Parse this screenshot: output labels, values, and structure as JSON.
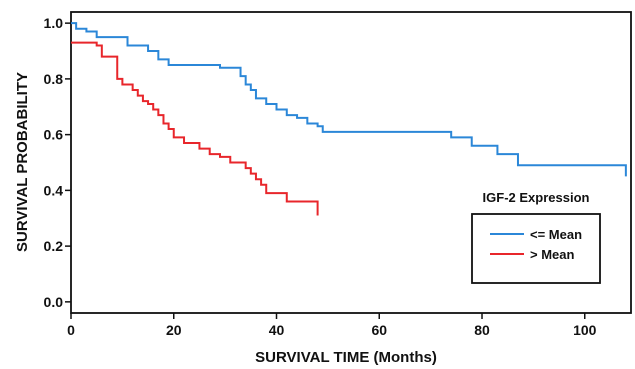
{
  "chart_data": {
    "type": "line",
    "subtype": "kaplan-meier step",
    "xlabel": "SURVIVAL TIME (Months)",
    "ylabel": "SURVIVAL PROBABILITY",
    "xlim": [
      0,
      109
    ],
    "ylim": [
      -0.04,
      1.04
    ],
    "xticks": [
      0,
      20,
      40,
      60,
      80,
      100
    ],
    "yticks": [
      0.0,
      0.2,
      0.4,
      0.6,
      0.8,
      1.0
    ],
    "ytick_labels": [
      "0.0",
      "0.2",
      "0.4",
      "0.6",
      "0.8",
      "1.0"
    ],
    "grid": false,
    "legend": {
      "title": "IGF-2 Expression",
      "placement": "right",
      "entries": [
        "<= Mean",
        "> Mean"
      ]
    },
    "series": [
      {
        "name": "<= Mean",
        "color": "#2b87d8",
        "x": [
          0,
          1,
          3,
          5,
          11,
          15,
          17,
          19,
          29,
          33,
          34,
          35,
          36,
          38,
          40,
          42,
          44,
          46,
          48,
          49,
          74,
          78,
          83,
          87,
          108
        ],
        "y": [
          1.0,
          0.98,
          0.97,
          0.95,
          0.92,
          0.9,
          0.87,
          0.85,
          0.84,
          0.81,
          0.78,
          0.76,
          0.73,
          0.71,
          0.69,
          0.67,
          0.66,
          0.64,
          0.63,
          0.61,
          0.59,
          0.56,
          0.53,
          0.49,
          0.45
        ]
      },
      {
        "name": "> Mean",
        "color": "#e8262b",
        "x": [
          0,
          5,
          6,
          9,
          10,
          12,
          13,
          14,
          15,
          16,
          17,
          18,
          19,
          20,
          22,
          25,
          27,
          29,
          31,
          34,
          35,
          36,
          37,
          38,
          42,
          48
        ],
        "y": [
          0.93,
          0.92,
          0.88,
          0.8,
          0.78,
          0.76,
          0.74,
          0.72,
          0.71,
          0.69,
          0.67,
          0.64,
          0.62,
          0.59,
          0.57,
          0.55,
          0.53,
          0.52,
          0.5,
          0.48,
          0.46,
          0.44,
          0.42,
          0.39,
          0.36,
          0.31
        ]
      }
    ]
  }
}
